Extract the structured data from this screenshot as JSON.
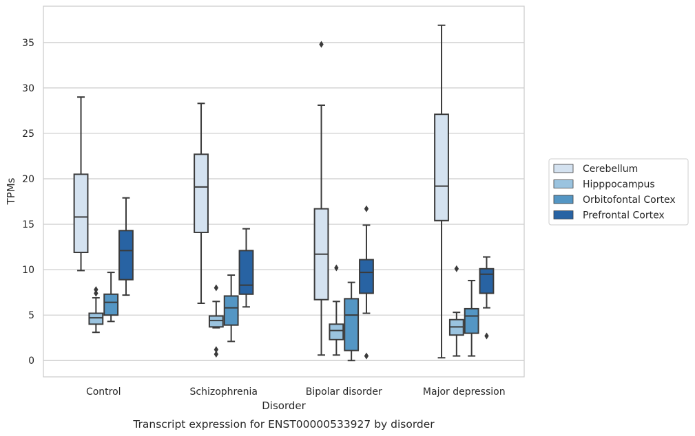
{
  "chart_data": {
    "type": "boxplot",
    "caption": "Transcript expression for ENST00000533927 by disorder",
    "xlabel": "Disorder",
    "ylabel": "TPMs",
    "ylim": [
      -1.8,
      39
    ],
    "yticks": [
      0,
      5,
      10,
      15,
      20,
      25,
      30,
      35
    ],
    "grid": "horizontal",
    "legend_position": "right",
    "categories": [
      "Control",
      "Schizophrenia",
      "Bipolar disorder",
      "Major depression"
    ],
    "series": [
      {
        "name": "Cerebellum",
        "color": "#d4e2f0",
        "boxes": [
          {
            "whislo": 9.9,
            "q1": 11.9,
            "med": 15.8,
            "q3": 20.5,
            "whishi": 29.0,
            "fliers": []
          },
          {
            "whislo": 6.3,
            "q1": 14.1,
            "med": 19.1,
            "q3": 22.7,
            "whishi": 28.3,
            "fliers": []
          },
          {
            "whislo": 0.6,
            "q1": 6.7,
            "med": 11.7,
            "q3": 16.7,
            "whishi": 28.1,
            "fliers": [
              34.8
            ]
          },
          {
            "whislo": 0.3,
            "q1": 15.4,
            "med": 19.2,
            "q3": 27.1,
            "whishi": 36.9,
            "fliers": []
          }
        ]
      },
      {
        "name": "Hipppocampus",
        "color": "#9ac3df",
        "boxes": [
          {
            "whislo": 3.1,
            "q1": 4.0,
            "med": 4.7,
            "q3": 5.2,
            "whishi": 6.9,
            "fliers": [
              7.4,
              7.8
            ]
          },
          {
            "whislo": 3.6,
            "q1": 3.7,
            "med": 4.4,
            "q3": 4.9,
            "whishi": 6.5,
            "fliers": [
              8.0,
              1.2,
              0.7
            ]
          },
          {
            "whislo": 0.6,
            "q1": 2.3,
            "med": 3.3,
            "q3": 4.0,
            "whishi": 6.5,
            "fliers": [
              10.2
            ]
          },
          {
            "whislo": 0.5,
            "q1": 2.8,
            "med": 3.7,
            "q3": 4.5,
            "whishi": 5.3,
            "fliers": [
              10.1
            ]
          }
        ]
      },
      {
        "name": "Orbitofontal Cortex",
        "color": "#5496c4",
        "boxes": [
          {
            "whislo": 4.3,
            "q1": 5.0,
            "med": 6.4,
            "q3": 7.3,
            "whishi": 9.7,
            "fliers": []
          },
          {
            "whislo": 2.1,
            "q1": 3.9,
            "med": 5.8,
            "q3": 7.1,
            "whishi": 9.4,
            "fliers": []
          },
          {
            "whislo": 0.0,
            "q1": 1.1,
            "med": 5.0,
            "q3": 6.8,
            "whishi": 8.6,
            "fliers": []
          },
          {
            "whislo": 0.5,
            "q1": 3.0,
            "med": 4.9,
            "q3": 5.7,
            "whishi": 8.8,
            "fliers": []
          }
        ]
      },
      {
        "name": "Prefrontal Cortex",
        "color": "#2863a3",
        "boxes": [
          {
            "whislo": 7.2,
            "q1": 8.9,
            "med": 12.1,
            "q3": 14.3,
            "whishi": 17.9,
            "fliers": []
          },
          {
            "whislo": 5.9,
            "q1": 7.3,
            "med": 8.3,
            "q3": 12.1,
            "whishi": 14.5,
            "fliers": []
          },
          {
            "whislo": 5.2,
            "q1": 7.4,
            "med": 9.7,
            "q3": 11.1,
            "whishi": 14.9,
            "fliers": [
              16.7,
              0.5
            ]
          },
          {
            "whislo": 5.8,
            "q1": 7.4,
            "med": 9.5,
            "q3": 10.1,
            "whishi": 11.4,
            "fliers": [
              2.7
            ]
          }
        ]
      }
    ]
  }
}
